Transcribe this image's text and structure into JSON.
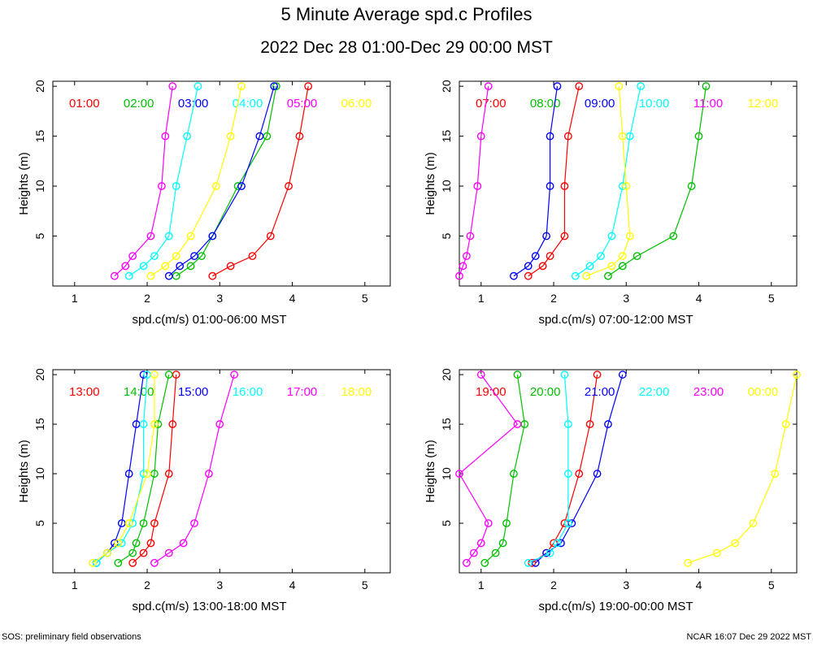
{
  "figure": {
    "title": "5 Minute Average spd.c Profiles",
    "subtitle": "2022 Dec 28 01:00-Dec 29 00:00 MST",
    "footer_left": "SOS: preliminary field observations",
    "footer_right": "NCAR 16:07 Dec 29 2022 MST"
  },
  "chart_data": [
    {
      "type": "line",
      "xlabel": "spd.c(m/s) 01:00-06:00 MST",
      "ylabel": "Heights (m)",
      "xlim": [
        0.7,
        5.35
      ],
      "ylim": [
        0,
        20.5
      ],
      "xticks": [
        1,
        2,
        3,
        4,
        5
      ],
      "yticks": [
        5,
        10,
        15,
        20
      ],
      "heights": [
        1,
        2,
        3,
        5,
        10,
        15,
        20
      ],
      "series": [
        {
          "name": "01:00",
          "color": "#ff0000",
          "values": [
            2.9,
            3.15,
            3.45,
            3.7,
            3.95,
            4.1,
            4.22
          ]
        },
        {
          "name": "02:00",
          "color": "#00c000",
          "values": [
            2.4,
            2.6,
            2.75,
            2.9,
            3.25,
            3.65,
            3.78
          ]
        },
        {
          "name": "03:00",
          "color": "#0000ff",
          "values": [
            2.3,
            2.45,
            2.65,
            2.9,
            3.3,
            3.55,
            3.75
          ]
        },
        {
          "name": "04:00",
          "color": "#00ffff",
          "values": [
            1.75,
            1.95,
            2.1,
            2.3,
            2.4,
            2.55,
            2.7
          ]
        },
        {
          "name": "05:00",
          "color": "#ff00ff",
          "values": [
            1.55,
            1.7,
            1.8,
            2.05,
            2.2,
            2.25,
            2.35
          ]
        },
        {
          "name": "06:00",
          "color": "#ffff00",
          "values": [
            2.05,
            2.25,
            2.4,
            2.6,
            2.95,
            3.15,
            3.3
          ]
        }
      ]
    },
    {
      "type": "line",
      "xlabel": "spd.c(m/s) 07:00-12:00 MST",
      "ylabel": "Heights (m)",
      "xlim": [
        0.7,
        5.35
      ],
      "ylim": [
        0,
        20.5
      ],
      "xticks": [
        1,
        2,
        3,
        4,
        5
      ],
      "yticks": [
        5,
        10,
        15,
        20
      ],
      "heights": [
        1,
        2,
        3,
        5,
        10,
        15,
        20
      ],
      "series": [
        {
          "name": "07:00",
          "color": "#ff0000",
          "values": [
            1.65,
            1.85,
            1.95,
            2.15,
            2.15,
            2.2,
            2.35
          ]
        },
        {
          "name": "08:00",
          "color": "#00c000",
          "values": [
            2.75,
            2.95,
            3.15,
            3.65,
            3.9,
            4.0,
            4.1
          ]
        },
        {
          "name": "09:00",
          "color": "#0000ff",
          "values": [
            1.45,
            1.65,
            1.75,
            1.9,
            1.95,
            1.95,
            2.05
          ]
        },
        {
          "name": "10:00",
          "color": "#00ffff",
          "values": [
            2.3,
            2.5,
            2.65,
            2.8,
            2.95,
            3.05,
            3.2
          ]
        },
        {
          "name": "11:00",
          "color": "#ff00ff",
          "values": [
            0.7,
            0.75,
            0.8,
            0.85,
            0.95,
            1.0,
            1.1
          ]
        },
        {
          "name": "12:00",
          "color": "#ffff00",
          "values": [
            2.45,
            2.8,
            2.95,
            3.05,
            3.0,
            2.95,
            2.9
          ]
        }
      ]
    },
    {
      "type": "line",
      "xlabel": "spd.c(m/s) 13:00-18:00 MST",
      "ylabel": "Heights (m)",
      "xlim": [
        0.7,
        5.35
      ],
      "ylim": [
        0,
        20.5
      ],
      "xticks": [
        1,
        2,
        3,
        4,
        5
      ],
      "yticks": [
        5,
        10,
        15,
        20
      ],
      "heights": [
        1,
        2,
        3,
        5,
        10,
        15,
        20
      ],
      "series": [
        {
          "name": "13:00",
          "color": "#ff0000",
          "values": [
            1.8,
            1.95,
            2.05,
            2.1,
            2.3,
            2.35,
            2.4
          ]
        },
        {
          "name": "14:00",
          "color": "#00c000",
          "values": [
            1.6,
            1.8,
            1.85,
            1.95,
            2.1,
            2.15,
            2.3
          ]
        },
        {
          "name": "15:00",
          "color": "#0000ff",
          "values": [
            1.3,
            1.45,
            1.55,
            1.65,
            1.75,
            1.85,
            1.95
          ]
        },
        {
          "name": "16:00",
          "color": "#00ffff",
          "values": [
            1.3,
            1.45,
            1.65,
            1.8,
            1.95,
            1.95,
            2.0
          ]
        },
        {
          "name": "17:00",
          "color": "#ff00ff",
          "values": [
            2.1,
            2.3,
            2.5,
            2.65,
            2.85,
            3.0,
            3.2
          ]
        },
        {
          "name": "18:00",
          "color": "#ffff00",
          "values": [
            1.25,
            1.45,
            1.6,
            1.75,
            2.0,
            2.1,
            2.1
          ]
        }
      ]
    },
    {
      "type": "line",
      "xlabel": "spd.c(m/s) 19:00-00:00 MST",
      "ylabel": "Heights (m)",
      "xlim": [
        0.7,
        5.35
      ],
      "ylim": [
        0,
        20.5
      ],
      "xticks": [
        1,
        2,
        3,
        4,
        5
      ],
      "yticks": [
        5,
        10,
        15,
        20
      ],
      "heights": [
        1,
        2,
        3,
        5,
        10,
        15,
        20
      ],
      "series": [
        {
          "name": "19:00",
          "color": "#ff0000",
          "values": [
            1.7,
            1.9,
            2.0,
            2.15,
            2.35,
            2.5,
            2.6
          ]
        },
        {
          "name": "20:00",
          "color": "#00c000",
          "values": [
            1.05,
            1.2,
            1.3,
            1.35,
            1.45,
            1.6,
            1.5
          ]
        },
        {
          "name": "21:00",
          "color": "#0000ff",
          "values": [
            1.75,
            1.9,
            2.1,
            2.25,
            2.6,
            2.75,
            2.95
          ]
        },
        {
          "name": "22:00",
          "color": "#00ffff",
          "values": [
            1.65,
            1.95,
            2.05,
            2.2,
            2.2,
            2.2,
            2.15
          ]
        },
        {
          "name": "23:00",
          "color": "#ff00ff",
          "values": [
            0.8,
            0.9,
            1.0,
            1.1,
            0.7,
            1.5,
            1.0
          ]
        },
        {
          "name": "00:00",
          "color": "#ffff00",
          "values": [
            3.85,
            4.25,
            4.5,
            4.75,
            5.05,
            5.2,
            5.35
          ]
        }
      ]
    }
  ]
}
